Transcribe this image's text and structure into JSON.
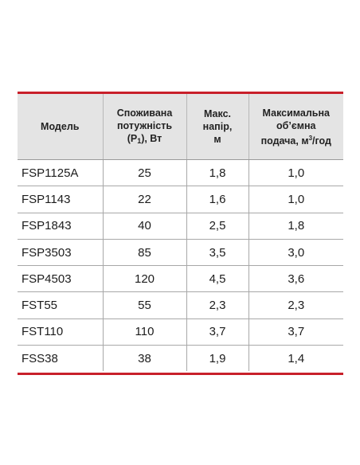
{
  "table": {
    "headers": {
      "model": "Модель",
      "power": [
        "Споживана",
        "потужність",
        "(P",
        "1",
        "), Вт"
      ],
      "head": [
        "Макс.",
        "напір,",
        "м"
      ],
      "flow": [
        "Максимальна",
        "об’ємна",
        "подача, м",
        "3",
        "/год"
      ]
    },
    "rows": [
      {
        "model": "FSP1125A",
        "power": "25",
        "head": "1,8",
        "flow": "1,0"
      },
      {
        "model": "FSP1143",
        "power": "22",
        "head": "1,6",
        "flow": "1,0"
      },
      {
        "model": "FSP1843",
        "power": "40",
        "head": "2,5",
        "flow": "1,8"
      },
      {
        "model": "FSP3503",
        "power": "85",
        "head": "3,5",
        "flow": "3,0"
      },
      {
        "model": "FSP4503",
        "power": "120",
        "head": "4,5",
        "flow": "3,6"
      },
      {
        "model": "FST55",
        "power": "55",
        "head": "2,3",
        "flow": "2,3"
      },
      {
        "model": "FST110",
        "power": "110",
        "head": "3,7",
        "flow": "3,7"
      },
      {
        "model": "FSS38",
        "power": "38",
        "head": "1,9",
        "flow": "1,4"
      }
    ]
  },
  "colors": {
    "accent_rule": "#c8202a",
    "header_background": "#e4e4e4"
  }
}
